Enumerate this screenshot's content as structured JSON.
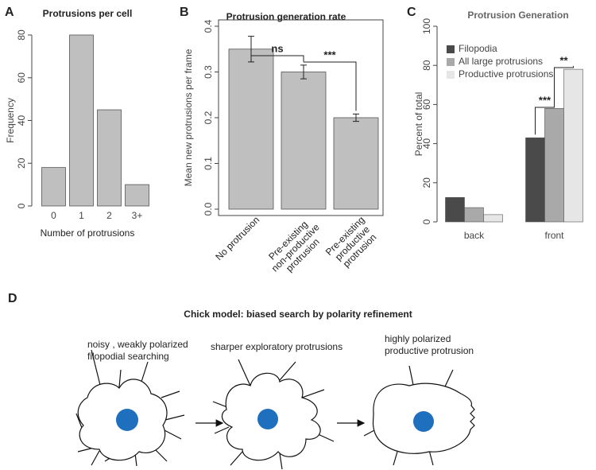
{
  "chart_data": [
    {
      "type": "bar",
      "panel_label": "A",
      "title": "Protrusions per cell",
      "categories": [
        "0",
        "1",
        "2",
        "3+"
      ],
      "values": [
        18,
        80,
        45,
        10
      ],
      "color": "#bfbfbf",
      "xlabel": "Number of protrusions",
      "ylabel": "Frequency",
      "ylim": [
        0,
        80
      ],
      "yticks": [
        0,
        20,
        40,
        60,
        80
      ]
    },
    {
      "type": "bar",
      "panel_label": "B",
      "title": "Protrusion generation rate",
      "categories": [
        "No protrusion",
        "Pre-existing\nnon-productive\nprotrusion",
        "Pre-existing\nproductive\nprotrusion"
      ],
      "values": [
        0.35,
        0.3,
        0.2
      ],
      "errors": [
        0.028,
        0.015,
        0.008
      ],
      "color": "#bfbfbf",
      "ylabel": "Mean new protrusions per frame",
      "box": true,
      "ylim": [
        0,
        0.4
      ],
      "yticks": [
        {
          "value": 0,
          "label": "0.0"
        },
        0.1,
        0.2,
        0.3,
        0.4
      ],
      "annotations": [
        {
          "text": "ns",
          "from": 0,
          "to": 1
        },
        {
          "text": "***",
          "from": 1,
          "to": 2
        }
      ]
    },
    {
      "type": "bar",
      "panel_label": "C",
      "title": "Protrusion Generation",
      "categories": [
        "back",
        "front"
      ],
      "series": [
        {
          "name": "Filopodia",
          "color": "#4a4a4a",
          "values": [
            12.5,
            43
          ]
        },
        {
          "name": "All large protrusions",
          "color": "#a9a9a9",
          "values": [
            7.3,
            58
          ]
        },
        {
          "name": "Productive protrusions",
          "color": "#e6e6e6",
          "values": [
            3.7,
            78
          ]
        }
      ],
      "ylabel": "Percent of total",
      "legend": "top-left",
      "ylim": [
        0,
        100
      ],
      "yticks": [
        0,
        20,
        40,
        60,
        80,
        100
      ],
      "annotations": [
        {
          "text": "***",
          "category": 1,
          "from": 0,
          "to": 1
        },
        {
          "text": "**",
          "category": 1,
          "from": 1,
          "to": 2
        }
      ]
    }
  ],
  "diagram": {
    "panel_label": "D",
    "title": "Chick model: biased search by polarity refinement",
    "stages": [
      {
        "lines": [
          "noisy , weakly polarized",
          "filopodial searching"
        ]
      },
      {
        "lines": [
          "sharper exploratory protrusions"
        ]
      },
      {
        "lines": [
          "highly polarized",
          "productive protrusion"
        ]
      }
    ]
  }
}
